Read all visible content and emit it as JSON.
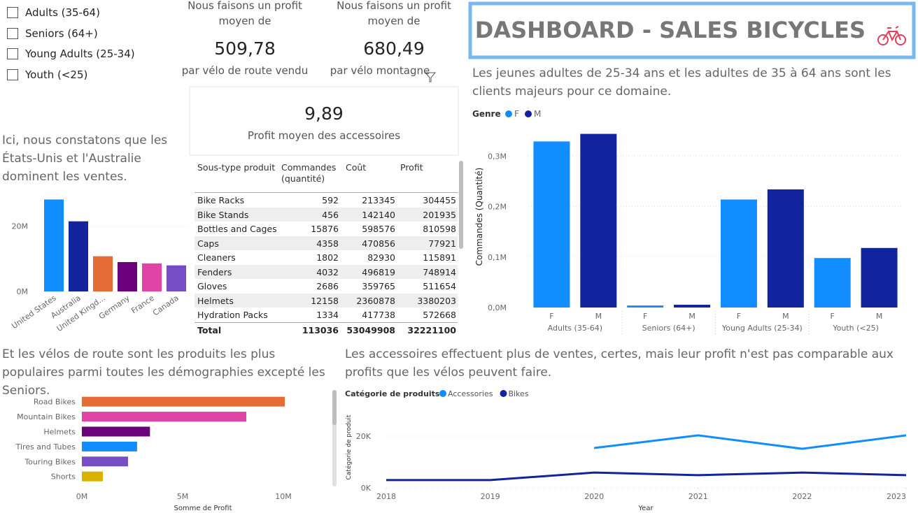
{
  "header": {
    "title": "DASHBOARD - SALES BICYCLES"
  },
  "slicer": {
    "items": [
      "Adults (35-64)",
      "Seniors (64+)",
      "Young Adults (25-34)",
      "Youth (<25)"
    ]
  },
  "cards": [
    {
      "title": "Nous faisons un profit moyen de",
      "value": "509,78",
      "subtitle": "par vélo de route vendu"
    },
    {
      "title": "Nous faisons un profit moyen de",
      "value": "680,49",
      "subtitle": "par vélo montagne"
    },
    {
      "value": "9,89",
      "subtitle": "Profit moyen des accessoires"
    }
  ],
  "table": {
    "columns": [
      "Sous-type produit",
      "Commandes (quantité)",
      "Coût",
      "Profit"
    ],
    "rows": [
      [
        "Bike Racks",
        592,
        213345,
        304455
      ],
      [
        "Bike Stands",
        456,
        142140,
        201935
      ],
      [
        "Bottles and Cages",
        15876,
        598576,
        810598
      ],
      [
        "Caps",
        4358,
        470856,
        77921
      ],
      [
        "Cleaners",
        1802,
        82930,
        115891
      ],
      [
        "Fenders",
        4032,
        496819,
        748914
      ],
      [
        "Gloves",
        2686,
        359765,
        511654
      ],
      [
        "Helmets",
        12158,
        2360878,
        3380203
      ],
      [
        "Hydration Packs",
        1334,
        417738,
        572668
      ]
    ],
    "total": [
      "Total",
      113036,
      53049908,
      32221100
    ]
  },
  "chart_data": [
    {
      "type": "bar",
      "subtitle": "Ici, nous constatons que les États-Unis et l'Australie dominent les ventes.",
      "categories": [
        "United States",
        "Australia",
        "United Kingd...",
        "Germany",
        "France",
        "Canada"
      ],
      "values": [
        28200000,
        21500000,
        10800000,
        9000000,
        8600000,
        8000000
      ],
      "colors": [
        "#118DFF",
        "#12239E",
        "#E66C37",
        "#6B007B",
        "#E044A7",
        "#744EC2"
      ],
      "ylim": [
        0,
        30000000
      ],
      "yticks": [
        {
          "value": 0,
          "label": "0M"
        },
        {
          "value": 20000000,
          "label": "20M"
        }
      ],
      "grid": true
    },
    {
      "type": "grouped-bar",
      "subtitle": "Les jeunes adultes de 25-34 ans et les adultes de 35 à 64 ans sont les clients majeurs pour ce domaine.",
      "legend_title": "Genre",
      "y_label": "Commandes (Quantité)",
      "categories": [
        "Adults (35-64)",
        "Seniors (64+)",
        "Young Adults (25-34)",
        "Youth (<25)"
      ],
      "series": [
        {
          "name": "F",
          "color": "#118DFF",
          "values": [
            329000,
            4000,
            214000,
            98000
          ]
        },
        {
          "name": "M",
          "color": "#12239E",
          "values": [
            344000,
            5500,
            234000,
            118000
          ]
        }
      ],
      "ylim": [
        0,
        360000
      ],
      "yticks": [
        {
          "value": 0,
          "label": "0,0M"
        },
        {
          "value": 100000,
          "label": "0,1M"
        },
        {
          "value": 200000,
          "label": "0,2M"
        },
        {
          "value": 300000,
          "label": "0,3M"
        }
      ],
      "grid": true
    },
    {
      "type": "hbar",
      "subtitle": "Et les vélos de route sont les produits les plus populaires parmi toutes les démographies excepté les Seniors.",
      "x_label": "Somme de Profit",
      "categories": [
        "Road Bikes",
        "Mountain Bikes",
        "Helmets",
        "Tires and Tubes",
        "Touring Bikes",
        "Shorts"
      ],
      "values": [
        10070000,
        8160000,
        3380203,
        2740000,
        2290000,
        1040000
      ],
      "colors": [
        "#E66C37",
        "#E044A7",
        "#6B007B",
        "#118DFF",
        "#744EC2",
        "#D9B300"
      ],
      "xlim": [
        0,
        11000000
      ],
      "xticks": [
        {
          "value": 0,
          "label": "0M"
        },
        {
          "value": 5000000,
          "label": "5M"
        },
        {
          "value": 10000000,
          "label": "10M"
        }
      ]
    },
    {
      "type": "line",
      "subtitle": "Les accessoires effectuent plus de ventes, certes, mais leur profit n'est pas comparable aux profits que les vélos peuvent faire.",
      "legend_title": "Catégorie de produits",
      "y_label": "Catégorie de produit",
      "x_label": "Year",
      "x": [
        2018,
        2019,
        2020,
        2021,
        2022,
        2023
      ],
      "series": [
        {
          "name": "Accessories",
          "color": "#118DFF",
          "values": [
            null,
            null,
            15400,
            20300,
            15100,
            20300
          ]
        },
        {
          "name": "Bikes",
          "color": "#12239E",
          "values": [
            3000,
            3000,
            5900,
            4900,
            5900,
            4900
          ]
        }
      ],
      "xlim": [
        2018,
        2023
      ],
      "xticks": [
        2018,
        2019,
        2020,
        2021,
        2022,
        2023
      ],
      "ylim": [
        0,
        24000
      ],
      "yticks": [
        {
          "value": 0,
          "label": "0K"
        },
        {
          "value": 20000,
          "label": "20K"
        }
      ],
      "grid": true
    }
  ]
}
